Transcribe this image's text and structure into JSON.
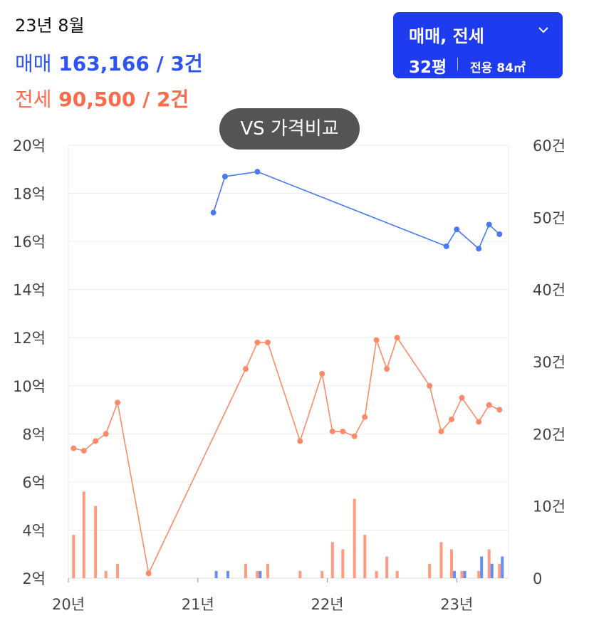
{
  "header": {
    "date": "23년 8월",
    "sale_label": "매매",
    "sale_value": "163,166 / 3건",
    "rent_label": "전세",
    "rent_value": "90,500 / 2건"
  },
  "filter": {
    "type_label": "매매, 전세",
    "size_label": "32평",
    "area_label": "전용 84㎡"
  },
  "vs_button": {
    "label": "VS 가격비교"
  },
  "colors": {
    "sale": "#4a79f0",
    "rent": "#ff8a6a",
    "filter_bg": "#1f3bf0",
    "vs_bg": "#545454"
  },
  "chart_data": {
    "type": "line",
    "y_left": {
      "ticks": [
        "2억",
        "4억",
        "6억",
        "8억",
        "10억",
        "12억",
        "14억",
        "16억",
        "18억",
        "20억"
      ],
      "min": 2,
      "max": 20
    },
    "y_right": {
      "ticks": [
        "0",
        "10건",
        "20건",
        "30건",
        "40건",
        "50건",
        "60건"
      ],
      "min": 0,
      "max": 60
    },
    "x_ticks": [
      {
        "label": "20년",
        "x": 2020.0
      },
      {
        "label": "21년",
        "x": 2021.0
      },
      {
        "label": "22년",
        "x": 2022.0
      },
      {
        "label": "23년",
        "x": 2023.0
      }
    ],
    "x_range": [
      2020.0,
      2023.4
    ],
    "grid": true,
    "series": [
      {
        "name": "매매",
        "color": "#4a79f0",
        "points": [
          [
            2021.12,
            17.2
          ],
          [
            2021.21,
            18.7
          ],
          [
            2021.46,
            18.9
          ],
          [
            2022.92,
            15.8
          ],
          [
            2023.0,
            16.5
          ],
          [
            2023.17,
            15.7
          ],
          [
            2023.25,
            16.7
          ],
          [
            2023.33,
            16.3
          ]
        ]
      },
      {
        "name": "전세",
        "color": "#ff8a6a",
        "points": [
          [
            2020.04,
            7.4
          ],
          [
            2020.12,
            7.3
          ],
          [
            2020.21,
            7.7
          ],
          [
            2020.29,
            8.0
          ],
          [
            2020.38,
            9.3
          ],
          [
            2020.62,
            2.2
          ],
          [
            2021.37,
            10.7
          ],
          [
            2021.46,
            11.8
          ],
          [
            2021.54,
            11.8
          ],
          [
            2021.79,
            7.7
          ],
          [
            2021.96,
            10.5
          ],
          [
            2022.04,
            8.1
          ],
          [
            2022.12,
            8.1
          ],
          [
            2022.21,
            7.9
          ],
          [
            2022.29,
            8.7
          ],
          [
            2022.38,
            11.9
          ],
          [
            2022.46,
            10.7
          ],
          [
            2022.54,
            12.0
          ],
          [
            2022.79,
            10.0
          ],
          [
            2022.88,
            8.1
          ],
          [
            2022.96,
            8.6
          ],
          [
            2023.04,
            9.5
          ],
          [
            2023.17,
            8.5
          ],
          [
            2023.25,
            9.2
          ],
          [
            2023.33,
            9.0
          ]
        ]
      }
    ],
    "volume": {
      "sale": [
        [
          2021.12,
          1
        ],
        [
          2021.21,
          1
        ],
        [
          2021.46,
          1
        ],
        [
          2022.96,
          1
        ],
        [
          2023.04,
          1
        ],
        [
          2023.17,
          3
        ],
        [
          2023.25,
          2
        ],
        [
          2023.33,
          3
        ]
      ],
      "rent": [
        [
          2020.04,
          6
        ],
        [
          2020.12,
          12
        ],
        [
          2020.21,
          10
        ],
        [
          2020.29,
          1
        ],
        [
          2020.38,
          2
        ],
        [
          2021.37,
          2
        ],
        [
          2021.46,
          1
        ],
        [
          2021.54,
          2
        ],
        [
          2021.79,
          1
        ],
        [
          2021.96,
          1
        ],
        [
          2022.04,
          5
        ],
        [
          2022.12,
          4
        ],
        [
          2022.21,
          11
        ],
        [
          2022.29,
          6
        ],
        [
          2022.38,
          1
        ],
        [
          2022.46,
          3
        ],
        [
          2022.54,
          1
        ],
        [
          2022.79,
          2
        ],
        [
          2022.88,
          5
        ],
        [
          2022.96,
          4
        ],
        [
          2023.04,
          1
        ],
        [
          2023.17,
          1
        ],
        [
          2023.25,
          4
        ],
        [
          2023.33,
          2
        ]
      ]
    }
  }
}
